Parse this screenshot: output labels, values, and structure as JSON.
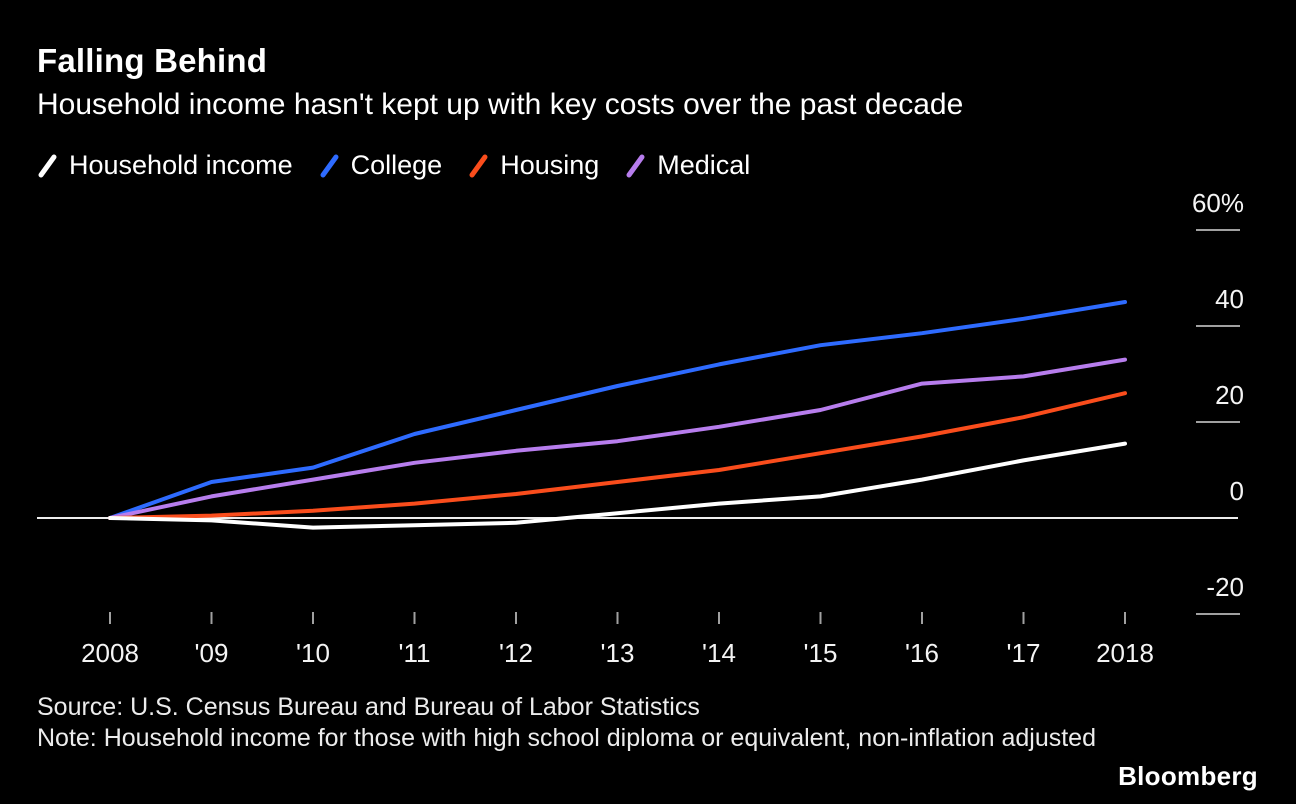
{
  "header": {
    "title": "Falling Behind",
    "subtitle": "Household income hasn't kept up with key costs over the past decade"
  },
  "chart_data": {
    "type": "line",
    "x": [
      "2008",
      "'09",
      "'10",
      "'11",
      "'12",
      "'13",
      "'14",
      "'15",
      "'16",
      "'17",
      "2018"
    ],
    "series": [
      {
        "name": "Household income",
        "color": "#ffffff",
        "values": [
          0,
          -0.5,
          -2,
          -1.5,
          -1,
          1,
          3,
          4.5,
          8,
          12,
          15.5
        ]
      },
      {
        "name": "College",
        "color": "#2e6bff",
        "values": [
          0,
          7.5,
          10.5,
          17.5,
          22.5,
          27.5,
          32,
          36,
          38.5,
          41.5,
          45
        ]
      },
      {
        "name": "Housing",
        "color": "#fa4d1c",
        "values": [
          0,
          0.5,
          1.5,
          3,
          5,
          7.5,
          10,
          13.5,
          17,
          21,
          26
        ]
      },
      {
        "name": "Medical",
        "color": "#b77ded",
        "values": [
          0,
          4.5,
          8,
          11.5,
          14,
          16,
          19,
          22.5,
          28,
          29.5,
          33
        ]
      }
    ],
    "y_ticks": [
      {
        "value": 60,
        "label": "60%"
      },
      {
        "value": 40,
        "label": "40"
      },
      {
        "value": 20,
        "label": "20"
      },
      {
        "value": 0,
        "label": "0"
      },
      {
        "value": -20,
        "label": "-20"
      }
    ],
    "ylim": [
      -25,
      65
    ],
    "unit": "%",
    "grid": "zero-line-only",
    "legend_position": "top"
  },
  "footer": {
    "source": "Source: U.S. Census Bureau and Bureau of Labor Statistics",
    "note": "Note: Household income for those with high school diploma or equivalent, non-inflation adjusted"
  },
  "branding": {
    "logo": "Bloomberg"
  }
}
